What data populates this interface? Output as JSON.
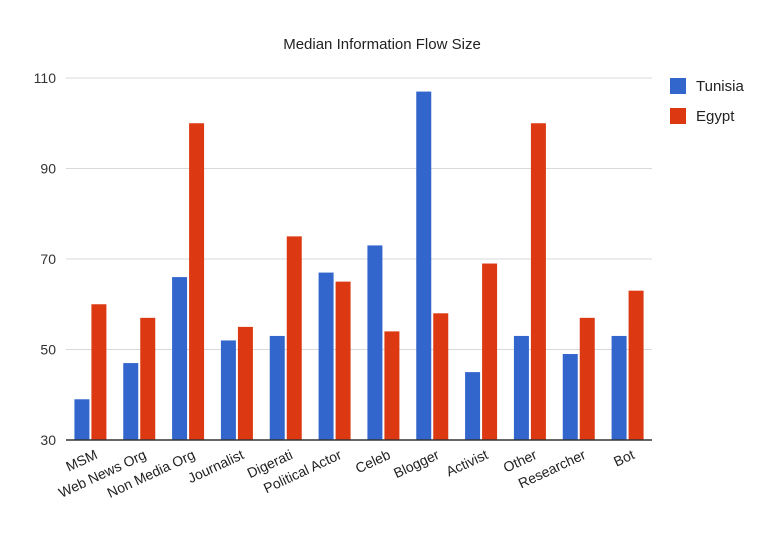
{
  "chart_data": {
    "type": "bar",
    "title": "Median Information Flow Size",
    "xlabel": "",
    "ylabel": "",
    "ylim": [
      30,
      110
    ],
    "yticks": [
      30,
      50,
      70,
      90,
      110
    ],
    "grid": true,
    "legend_position": "right",
    "categories": [
      "MSM",
      "Web News Org",
      "Non Media Org",
      "Journalist",
      "Digerati",
      "Political Actor",
      "Celeb",
      "Blogger",
      "Activist",
      "Other",
      "Researcher",
      "Bot"
    ],
    "series": [
      {
        "name": "Tunisia",
        "color": "#3366cc",
        "values": [
          39,
          47,
          66,
          52,
          53,
          67,
          73,
          107,
          45,
          53,
          49,
          53
        ]
      },
      {
        "name": "Egypt",
        "color": "#dc3912",
        "values": [
          60,
          57,
          100,
          55,
          75,
          65,
          54,
          58,
          69,
          100,
          57,
          63
        ]
      }
    ]
  }
}
